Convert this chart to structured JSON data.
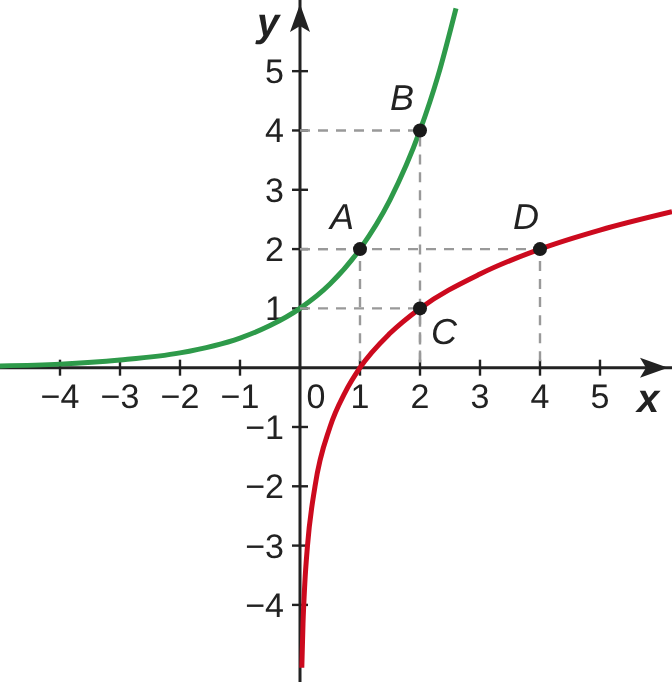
{
  "chart_data": {
    "type": "line",
    "xlabel": "x",
    "ylabel": "y",
    "xlim": [
      -5,
      6.2
    ],
    "ylim": [
      -5.3,
      6.2
    ],
    "xticks": [
      -4,
      -3,
      -2,
      -1,
      0,
      1,
      2,
      3,
      4,
      5
    ],
    "yticks": [
      -4,
      -3,
      -2,
      -1,
      1,
      2,
      3,
      4,
      5
    ],
    "grid": false,
    "legend": false,
    "marker": "none",
    "line_style": "solid",
    "series": [
      {
        "color": "#2e9a4a",
        "x": [
          -5,
          -4,
          -3,
          -2,
          -1,
          -0.5,
          0,
          0.5,
          1,
          1.5,
          2,
          2.3,
          2.6
        ],
        "values": [
          0.03,
          0.06,
          0.13,
          0.25,
          0.5,
          0.71,
          1,
          1.41,
          2,
          2.83,
          4,
          4.92,
          6.06
        ]
      },
      {
        "color": "#cc0a1e",
        "x": [
          0.03,
          0.05,
          0.08,
          0.125,
          0.25,
          0.5,
          0.75,
          1,
          1.5,
          2,
          3,
          4,
          5,
          6.2
        ],
        "values": [
          -5.06,
          -4.32,
          -3.64,
          -3,
          -2,
          -1,
          -0.42,
          0,
          0.58,
          1,
          1.58,
          2,
          2.32,
          2.63
        ]
      },
      {
        "type": "line",
        "color": "#999999",
        "line_style": "dashed",
        "x": [
          0,
          1,
          1
        ],
        "values": [
          2,
          2,
          0
        ]
      },
      {
        "type": "line",
        "color": "#999999",
        "line_style": "dashed",
        "x": [
          0,
          2,
          2
        ],
        "values": [
          4,
          4,
          0
        ]
      },
      {
        "type": "line",
        "color": "#999999",
        "line_style": "dashed",
        "x": [
          0,
          2,
          2
        ],
        "values": [
          1,
          1,
          0
        ]
      },
      {
        "type": "line",
        "color": "#999999",
        "line_style": "dashed",
        "x": [
          0,
          4,
          4
        ],
        "values": [
          2,
          2,
          0
        ]
      },
      {
        "type": "scatter",
        "color": "#1a1a1a",
        "marker": "circle",
        "x": [
          1,
          2,
          2,
          4
        ],
        "values": [
          2,
          4,
          1,
          2
        ]
      }
    ],
    "annotations": [
      {
        "text": "A",
        "x": 1,
        "y": 2
      },
      {
        "text": "B",
        "x": 2,
        "y": 4
      },
      {
        "text": "C",
        "x": 2,
        "y": 1
      },
      {
        "text": "D",
        "x": 4,
        "y": 2
      }
    ]
  }
}
